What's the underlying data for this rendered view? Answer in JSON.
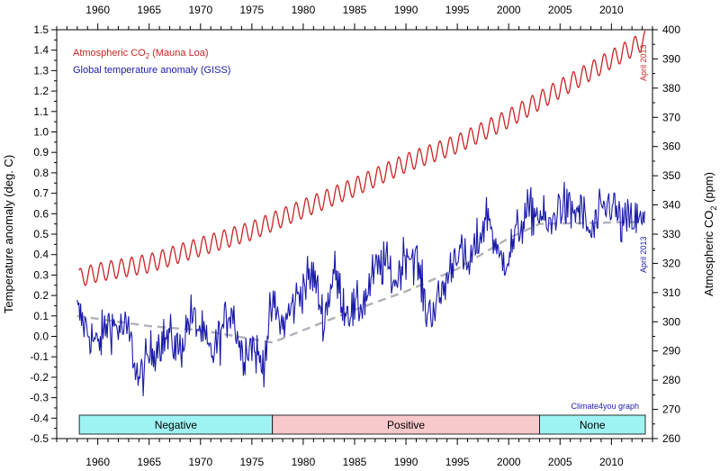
{
  "chart_data": {
    "type": "line",
    "axes": {
      "x": {
        "min": 1956.0,
        "max": 2014.0,
        "ticks": [
          1960,
          1965,
          1970,
          1975,
          1980,
          1985,
          1990,
          1995,
          2000,
          2005,
          2010
        ]
      },
      "y_left": {
        "label": "Temperature anomaly (deg. C)",
        "min": -0.5,
        "max": 1.5,
        "ticks": [
          1.5,
          1.4,
          1.3,
          1.2,
          1.1,
          1.0,
          0.9,
          0.8,
          0.7,
          0.6,
          0.5,
          0.4,
          0.3,
          0.2,
          0.1,
          0.0,
          -0.1,
          -0.2,
          -0.3,
          -0.4,
          -0.5
        ],
        "tick_labels": [
          "1.5",
          "1.4",
          "1.3",
          "1.2",
          "1.1",
          "1.0",
          "0.9",
          "0.8",
          "0.7",
          "0.6",
          "0.5",
          "0.4",
          "0.3",
          "0.2",
          "0.1",
          "0.0",
          "-0.1",
          "-0.2",
          "-0.3",
          "-0.4",
          "-0.5"
        ]
      },
      "y_right": {
        "label": "Atmospheric CO2 (ppm)",
        "min": 260,
        "max": 400,
        "ticks": [
          400,
          390,
          380,
          370,
          360,
          350,
          340,
          330,
          320,
          310,
          300,
          290,
          280,
          270,
          260
        ]
      }
    },
    "x_tick_labels": [
      "1960",
      "1965",
      "1970",
      "1975",
      "1980",
      "1985",
      "1990",
      "1995",
      "2000",
      "2005",
      "2010"
    ],
    "y_right_tick_labels": [
      "400",
      "390",
      "380",
      "370",
      "360",
      "350",
      "340",
      "330",
      "320",
      "310",
      "300",
      "290",
      "280",
      "270",
      "260"
    ],
    "series": [
      {
        "name": "Atmospheric CO2 (Mauna Loa)",
        "axis": "right",
        "color": "#cc2222",
        "trend_x": [
          1958.2,
          1960,
          1965,
          1970,
          1975,
          1980,
          1985,
          1990,
          1995,
          2000,
          2005,
          2010,
          2013.3
        ],
        "trend_y": [
          315.0,
          316.9,
          320.0,
          325.7,
          331.2,
          338.7,
          346.1,
          354.4,
          360.9,
          369.6,
          379.8,
          389.9,
          396.5
        ],
        "seasonal_amplitude": 3.2,
        "end_note": "April 2013"
      },
      {
        "name": "Global temperature anomaly (GISS)",
        "axis": "left",
        "color": "#1a1aaa",
        "anchors_x": [
          1958.0,
          1959,
          1960,
          1961,
          1962,
          1963,
          1964,
          1965,
          1966,
          1967,
          1968,
          1969,
          1970,
          1971,
          1972,
          1973,
          1974,
          1975,
          1976,
          1977,
          1978,
          1979,
          1980,
          1981,
          1982,
          1983,
          1984,
          1985,
          1986,
          1987,
          1988,
          1989,
          1990,
          1991,
          1992,
          1993,
          1994,
          1995,
          1996,
          1997,
          1998,
          1999,
          2000,
          2001,
          2002,
          2003,
          2004,
          2005,
          2006,
          2007,
          2008,
          2009,
          2010,
          2011,
          2012,
          2013.3
        ],
        "anchors_y": [
          0.12,
          0.03,
          -0.05,
          0.07,
          0.04,
          0.02,
          -0.22,
          -0.1,
          -0.02,
          -0.01,
          -0.07,
          0.1,
          0.03,
          -0.1,
          0.01,
          0.15,
          -0.08,
          -0.03,
          -0.15,
          0.15,
          0.05,
          0.15,
          0.25,
          0.3,
          0.08,
          0.32,
          0.15,
          0.12,
          0.18,
          0.32,
          0.36,
          0.26,
          0.42,
          0.38,
          0.12,
          0.15,
          0.28,
          0.44,
          0.33,
          0.46,
          0.61,
          0.37,
          0.4,
          0.53,
          0.61,
          0.6,
          0.52,
          0.66,
          0.6,
          0.62,
          0.49,
          0.6,
          0.66,
          0.54,
          0.57,
          0.55
        ],
        "noise": 0.11,
        "end_note": "April 2013"
      },
      {
        "name": "Temperature trend (dashed)",
        "axis": "left",
        "color": "#b0b0b8",
        "x": [
          1958,
          1965,
          1970,
          1977,
          1985,
          1990,
          1995,
          2000,
          2003,
          2013.3
        ],
        "y": [
          0.1,
          0.05,
          0.03,
          -0.03,
          0.13,
          0.22,
          0.33,
          0.48,
          0.55,
          0.56
        ]
      }
    ],
    "bands": [
      {
        "label": "Negative",
        "x0": 1958.2,
        "x1": 1977.0,
        "color": "#9ff3f3"
      },
      {
        "label": "Positive",
        "x0": 1977.0,
        "x1": 2003.0,
        "color": "#f8c8cb"
      },
      {
        "label": "None",
        "x0": 2003.0,
        "x1": 2013.3,
        "color": "#9ff3f3"
      }
    ],
    "legend": [
      {
        "text": "Atmospheric CO",
        "sub": "2",
        "suffix": " (Mauna Loa)",
        "color": "#cc2222"
      },
      {
        "text": "Global temperature anomaly (GISS)",
        "sub": "",
        "suffix": "",
        "color": "#1a1aaa"
      }
    ],
    "legend_position": "top-left",
    "annotations": {
      "co2_end": "April 2013",
      "temp_end": "April 2013",
      "credit": "Climate4you graph"
    }
  }
}
